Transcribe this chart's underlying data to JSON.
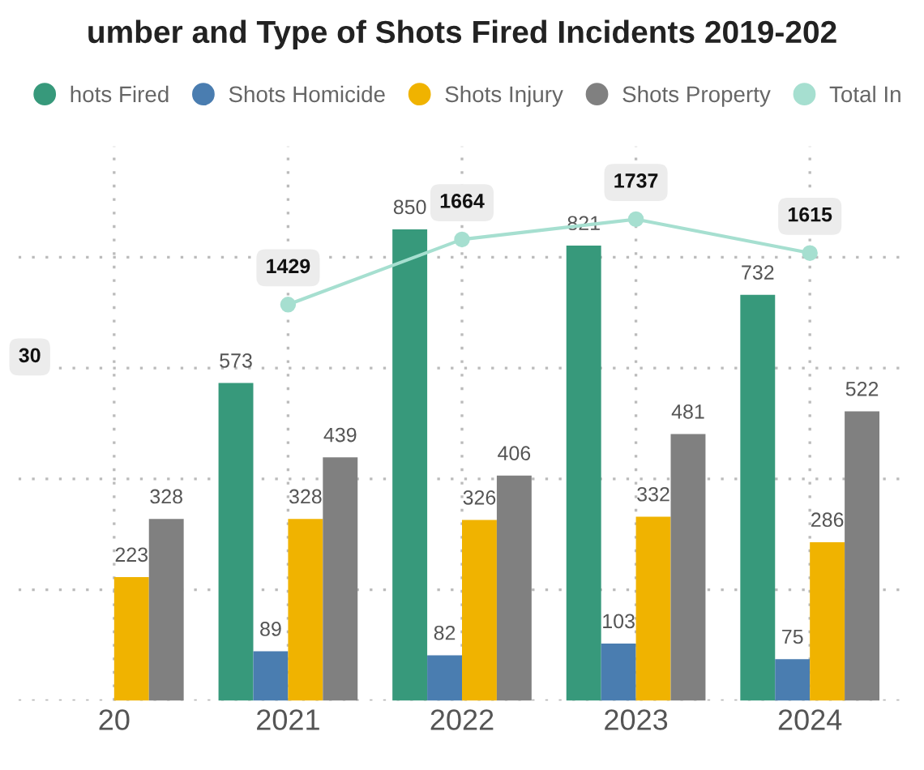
{
  "chart_data": {
    "type": "bar",
    "title": "umber and Type of Shots Fired Incidents 2019-202",
    "categories": [
      "20",
      "2021",
      "2022",
      "2023",
      "2024"
    ],
    "series": [
      {
        "name": "hots Fired",
        "color": "#37997b",
        "values": [
          null,
          573,
          850,
          821,
          732
        ]
      },
      {
        "name": "Shots Homicide",
        "color": "#4a7db0",
        "values": [
          null,
          89,
          82,
          103,
          75
        ]
      },
      {
        "name": "Shots Injury",
        "color": "#f0b300",
        "values": [
          223,
          328,
          326,
          332,
          286
        ]
      },
      {
        "name": "Shots Property",
        "color": "#808080",
        "values": [
          328,
          439,
          406,
          481,
          522
        ]
      },
      {
        "name": "Total In",
        "type": "line",
        "axis": "y2",
        "color": "#a6dfd0",
        "values": [
          null,
          1429,
          1664,
          1737,
          1615
        ],
        "value_labels": [
          null,
          "1429",
          "1664",
          "1737",
          "1615"
        ]
      }
    ],
    "ylim": [
      0,
      1000
    ],
    "yticks": [
      {
        "value": 0,
        "label": null
      },
      {
        "value": 200,
        "label": null
      },
      {
        "value": 400,
        "label": null
      },
      {
        "value": 600,
        "label": null
      },
      {
        "value": 800,
        "label": null
      }
    ],
    "y2lim": [
      0,
      2000
    ],
    "annotations": [
      "30"
    ],
    "tick_labels": "x",
    "grid": true,
    "legend": "top",
    "marker": "circle",
    "data_labels": true
  }
}
